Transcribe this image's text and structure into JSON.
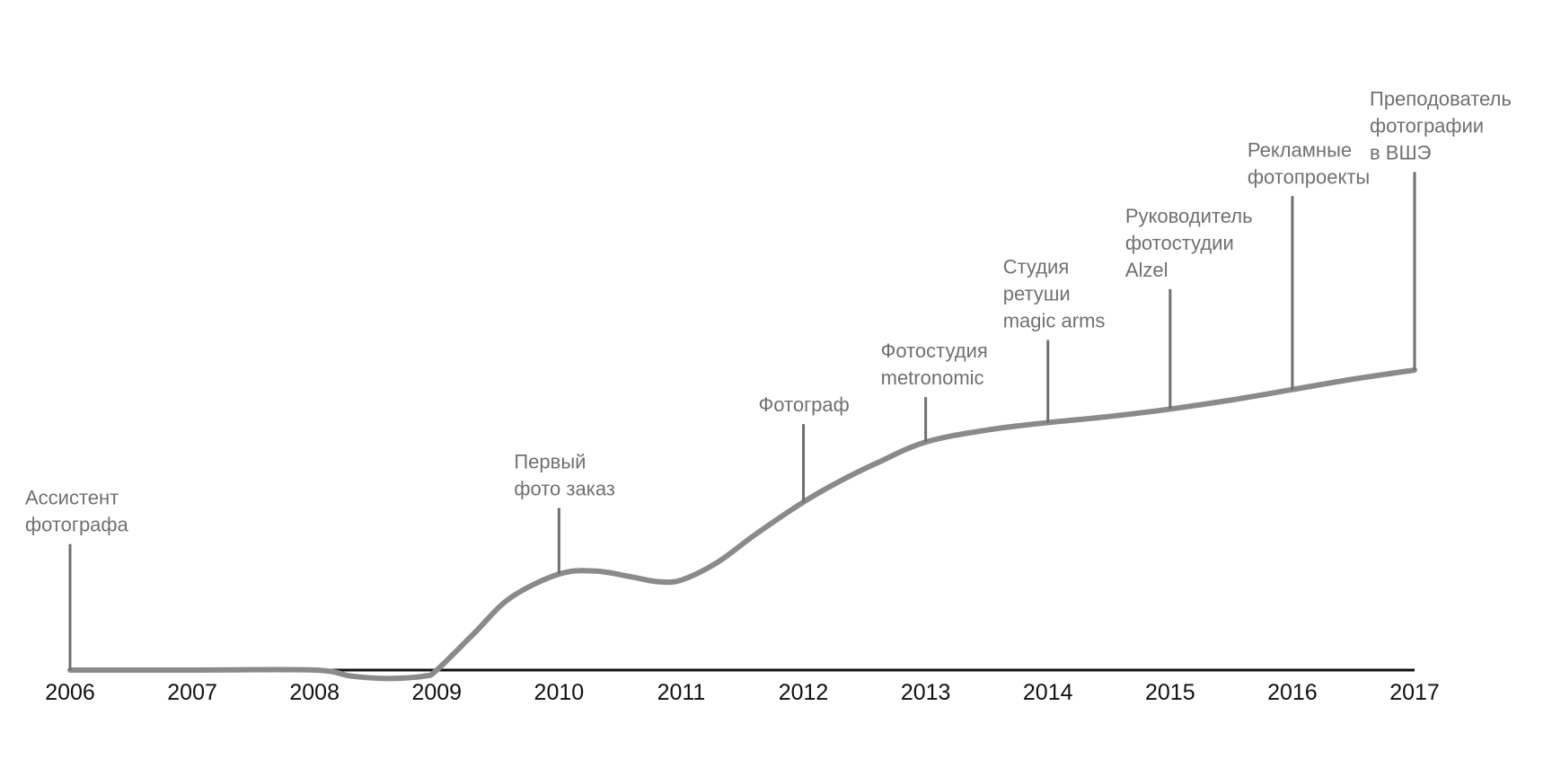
{
  "chart_data": {
    "type": "line",
    "title": "",
    "xlabel": "",
    "ylabel": "",
    "xlim": [
      2006,
      2017
    ],
    "ylim": [
      -0.03,
      1.0
    ],
    "grid": false,
    "legend": "none",
    "colors": {
      "axis": "#111111",
      "curve": "#8a8a8a",
      "markers": "#6f6f6f",
      "event_text": "#707070",
      "tick_text": "#111111"
    },
    "x_ticks": [
      "2006",
      "2007",
      "2008",
      "2009",
      "2010",
      "2011",
      "2012",
      "2013",
      "2014",
      "2015",
      "2016",
      "2017"
    ],
    "series": [
      {
        "x": [
          2006,
          2007,
          2008,
          2008.3,
          2008.6,
          2008.9,
          2009,
          2009.3,
          2009.6,
          2010,
          2010.3,
          2010.6,
          2010.8,
          2011,
          2011.3,
          2011.6,
          2012,
          2012.3,
          2012.6,
          2013,
          2013.5,
          2014,
          2014.5,
          2015,
          2015.5,
          2016,
          2016.5,
          2017
        ],
        "y": [
          0,
          0,
          0,
          -0.02,
          -0.028,
          -0.02,
          0,
          0.12,
          0.24,
          0.32,
          0.33,
          0.31,
          0.295,
          0.3,
          0.36,
          0.45,
          0.56,
          0.63,
          0.69,
          0.76,
          0.8,
          0.825,
          0.845,
          0.87,
          0.9,
          0.935,
          0.97,
          1.0
        ]
      }
    ],
    "events": [
      {
        "x": 2006,
        "y": 0,
        "label_lines": [
          "Ассистент",
          "фотографа"
        ],
        "line_top_y": 0.42
      },
      {
        "x": 2010,
        "y": 0.32,
        "label_lines": [
          "Первый",
          "фото заказ"
        ],
        "line_top_y": 0.54
      },
      {
        "x": 2012,
        "y": 0.56,
        "label_lines": [
          "Фотограф"
        ],
        "line_top_y": 0.82
      },
      {
        "x": 2013,
        "y": 0.76,
        "label_lines": [
          "Фотостудия",
          "metronomic"
        ],
        "line_top_y": 0.91
      },
      {
        "x": 2014,
        "y": 0.825,
        "label_lines": [
          "Студия",
          "ретуши",
          "magic arms"
        ],
        "line_top_y": 1.1
      },
      {
        "x": 2015,
        "y": 0.87,
        "label_lines": [
          "Руководитель",
          "фотостудии",
          "Alzel"
        ],
        "line_top_y": 1.27
      },
      {
        "x": 2016,
        "y": 0.935,
        "label_lines": [
          "Рекламные",
          "фотопроекты"
        ],
        "line_top_y": 1.58
      },
      {
        "x": 2017,
        "y": 1.0,
        "label_lines": [
          "Преподователь",
          "фотографии",
          "в ВШЭ"
        ],
        "line_top_y": 1.66
      }
    ]
  }
}
